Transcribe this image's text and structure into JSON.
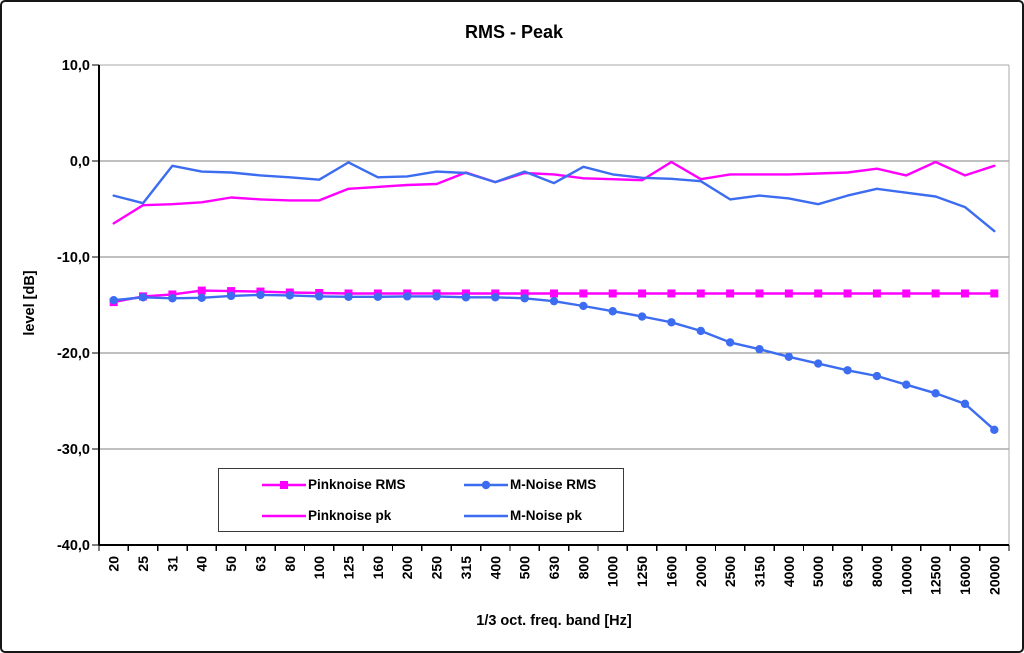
{
  "chart_data": {
    "type": "line",
    "title": "RMS - Peak",
    "xlabel": "1/3 oct. freq. band [Hz]",
    "ylabel": "level [dB]",
    "ylim": [
      -40,
      10
    ],
    "grid": "horizontal-major",
    "legend_position": "inside-bottom-center",
    "colors": {
      "axis": "#000000",
      "grid": "#808080",
      "plot_border": "#a8a8a8"
    },
    "yticks": [
      {
        "value": 10,
        "label": "10,0"
      },
      {
        "value": 0,
        "label": "0,0"
      },
      {
        "value": -10,
        "label": "-10,0"
      },
      {
        "value": -20,
        "label": "-20,0"
      },
      {
        "value": -30,
        "label": "-30,0"
      },
      {
        "value": -40,
        "label": "-40,0"
      }
    ],
    "categories": [
      "20",
      "25",
      "31",
      "40",
      "50",
      "63",
      "80",
      "100",
      "125",
      "160",
      "200",
      "250",
      "315",
      "400",
      "500",
      "630",
      "800",
      "1000",
      "1250",
      "1600",
      "2000",
      "2500",
      "3150",
      "4000",
      "5000",
      "6300",
      "8000",
      "10000",
      "12500",
      "16000",
      "20000"
    ],
    "series": [
      {
        "name": "Pinknoise RMS",
        "color": "#ff00ff",
        "marker": "square",
        "values": [
          -14.7,
          -14.1,
          -13.9,
          -13.5,
          -13.55,
          -13.6,
          -13.7,
          -13.75,
          -13.8,
          -13.8,
          -13.8,
          -13.8,
          -13.8,
          -13.8,
          -13.8,
          -13.8,
          -13.8,
          -13.8,
          -13.8,
          -13.8,
          -13.8,
          -13.8,
          -13.8,
          -13.8,
          -13.8,
          -13.8,
          -13.8,
          -13.8,
          -13.8,
          -13.8,
          -13.8
        ]
      },
      {
        "name": "M-Noise RMS",
        "color": "#3c6cf0",
        "marker": "circle",
        "values": [
          -14.5,
          -14.2,
          -14.3,
          -14.25,
          -14.05,
          -13.95,
          -14.0,
          -14.1,
          -14.15,
          -14.15,
          -14.1,
          -14.1,
          -14.2,
          -14.2,
          -14.3,
          -14.6,
          -15.1,
          -15.65,
          -16.2,
          -16.8,
          -17.7,
          -18.9,
          -19.6,
          -20.4,
          -21.1,
          -21.8,
          -22.4,
          -23.3,
          -24.2,
          -25.3,
          -28.0
        ]
      },
      {
        "name": "Pinknoise pk",
        "color": "#ff00ff",
        "marker": "none",
        "values": [
          -6.5,
          -4.6,
          -4.5,
          -4.3,
          -3.8,
          -4.0,
          -4.1,
          -4.1,
          -2.9,
          -2.7,
          -2.5,
          -2.4,
          -1.2,
          -2.2,
          -1.25,
          -1.4,
          -1.8,
          -1.9,
          -2.0,
          -0.1,
          -1.9,
          -1.4,
          -1.4,
          -1.4,
          -1.3,
          -1.2,
          -0.8,
          -1.5,
          -0.1,
          -1.5,
          -0.5
        ]
      },
      {
        "name": "M-Noise pk",
        "color": "#3c6cf0",
        "marker": "none",
        "values": [
          -3.6,
          -4.4,
          -0.5,
          -1.1,
          -1.2,
          -1.5,
          -1.7,
          -1.95,
          -0.15,
          -1.7,
          -1.6,
          -1.1,
          -1.25,
          -2.2,
          -1.1,
          -2.3,
          -0.6,
          -1.4,
          -1.75,
          -1.85,
          -2.1,
          -4.0,
          -3.6,
          -3.9,
          -4.5,
          -3.6,
          -2.9,
          -3.3,
          -3.7,
          -4.8,
          -7.3
        ]
      }
    ]
  }
}
